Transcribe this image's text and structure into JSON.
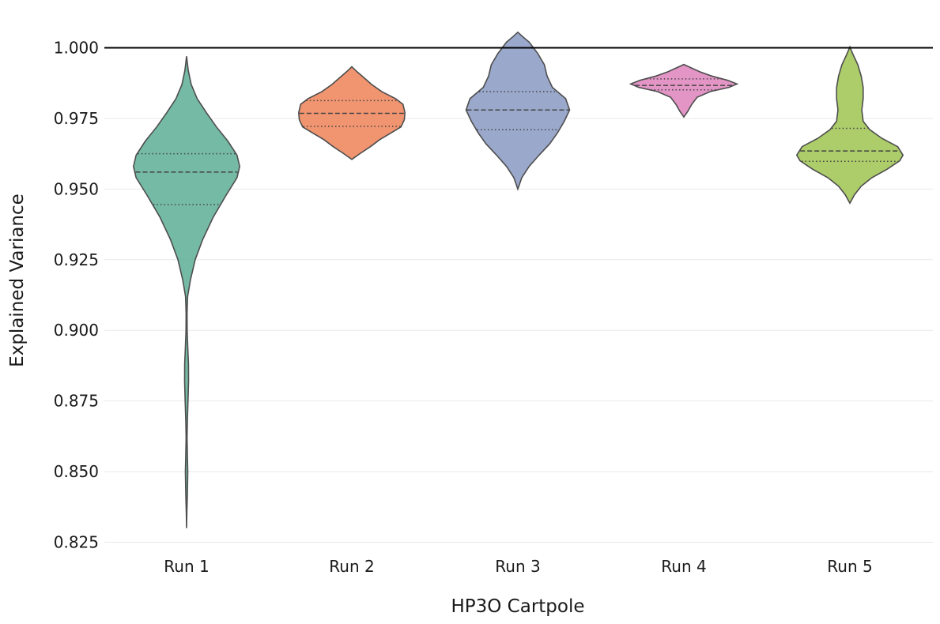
{
  "chart_data": {
    "type": "violin",
    "xlabel": "HP3O  Cartpole",
    "ylabel": "Explained Variance",
    "ylim": [
      0.82,
      1.007
    ],
    "yticks": [
      "0.825",
      "0.850",
      "0.875",
      "0.900",
      "0.925",
      "0.950",
      "0.975",
      "1.000"
    ],
    "reference_line": 1.0,
    "grid": "horizontal",
    "categories": [
      "Run 1",
      "Run 2",
      "Run 3",
      "Run 4",
      "Run 5"
    ],
    "series": [
      {
        "category": "Run 1",
        "color": "#66b39a",
        "min": 0.83,
        "max": 0.997,
        "q1": 0.9445,
        "median": 0.956,
        "q3": 0.9625,
        "profile": [
          [
            0.83,
            0.0
          ],
          [
            0.835,
            0.004
          ],
          [
            0.842,
            0.012
          ],
          [
            0.85,
            0.018
          ],
          [
            0.856,
            0.012
          ],
          [
            0.862,
            0.007
          ],
          [
            0.868,
            0.012
          ],
          [
            0.875,
            0.022
          ],
          [
            0.882,
            0.03
          ],
          [
            0.888,
            0.028
          ],
          [
            0.894,
            0.018
          ],
          [
            0.9,
            0.008
          ],
          [
            0.906,
            0.007
          ],
          [
            0.912,
            0.015
          ],
          [
            0.918,
            0.06
          ],
          [
            0.925,
            0.13
          ],
          [
            0.932,
            0.24
          ],
          [
            0.94,
            0.4
          ],
          [
            0.948,
            0.6
          ],
          [
            0.954,
            0.76
          ],
          [
            0.958,
            0.8
          ],
          [
            0.962,
            0.76
          ],
          [
            0.967,
            0.62
          ],
          [
            0.972,
            0.45
          ],
          [
            0.977,
            0.3
          ],
          [
            0.982,
            0.16
          ],
          [
            0.987,
            0.07
          ],
          [
            0.992,
            0.025
          ],
          [
            0.997,
            0.0
          ]
        ]
      },
      {
        "category": "Run 2",
        "color": "#f08a62",
        "min": 0.9605,
        "max": 0.9933,
        "q1": 0.9722,
        "median": 0.9768,
        "q3": 0.9813,
        "profile": [
          [
            0.9605,
            0.0
          ],
          [
            0.9625,
            0.12
          ],
          [
            0.965,
            0.28
          ],
          [
            0.9675,
            0.42
          ],
          [
            0.97,
            0.6
          ],
          [
            0.972,
            0.74
          ],
          [
            0.9745,
            0.79
          ],
          [
            0.977,
            0.8
          ],
          [
            0.98,
            0.77
          ],
          [
            0.982,
            0.66
          ],
          [
            0.9845,
            0.45
          ],
          [
            0.987,
            0.3
          ],
          [
            0.9895,
            0.18
          ],
          [
            0.9915,
            0.08
          ],
          [
            0.9933,
            0.0
          ]
        ]
      },
      {
        "category": "Run 3",
        "color": "#8f9fc5",
        "min": 0.95,
        "max": 1.0055,
        "q1": 0.971,
        "median": 0.978,
        "q3": 0.9845,
        "profile": [
          [
            0.95,
            0.0
          ],
          [
            0.954,
            0.06
          ],
          [
            0.958,
            0.17
          ],
          [
            0.962,
            0.32
          ],
          [
            0.966,
            0.48
          ],
          [
            0.97,
            0.6
          ],
          [
            0.974,
            0.7
          ],
          [
            0.978,
            0.78
          ],
          [
            0.982,
            0.72
          ],
          [
            0.986,
            0.52
          ],
          [
            0.99,
            0.44
          ],
          [
            0.994,
            0.4
          ],
          [
            0.998,
            0.3
          ],
          [
            1.002,
            0.17
          ],
          [
            1.004,
            0.07
          ],
          [
            1.0055,
            0.0
          ]
        ]
      },
      {
        "category": "Run 4",
        "color": "#e08ac0",
        "min": 0.9755,
        "max": 0.9941,
        "q1": 0.9851,
        "median": 0.9867,
        "q3": 0.989,
        "profile": [
          [
            0.9755,
            0.0
          ],
          [
            0.9775,
            0.06
          ],
          [
            0.98,
            0.12
          ],
          [
            0.9825,
            0.2
          ],
          [
            0.9845,
            0.4
          ],
          [
            0.986,
            0.68
          ],
          [
            0.9872,
            0.8
          ],
          [
            0.9885,
            0.66
          ],
          [
            0.99,
            0.42
          ],
          [
            0.9915,
            0.24
          ],
          [
            0.993,
            0.1
          ],
          [
            0.9941,
            0.0
          ]
        ]
      },
      {
        "category": "Run 5",
        "color": "#a3c85a",
        "min": 0.945,
        "max": 1.0003,
        "q1": 0.9598,
        "median": 0.9635,
        "q3": 0.9715,
        "profile": [
          [
            0.945,
            0.0
          ],
          [
            0.948,
            0.07
          ],
          [
            0.951,
            0.17
          ],
          [
            0.954,
            0.33
          ],
          [
            0.957,
            0.56
          ],
          [
            0.96,
            0.75
          ],
          [
            0.962,
            0.8
          ],
          [
            0.965,
            0.72
          ],
          [
            0.968,
            0.48
          ],
          [
            0.971,
            0.3
          ],
          [
            0.974,
            0.2
          ],
          [
            0.978,
            0.18
          ],
          [
            0.982,
            0.2
          ],
          [
            0.986,
            0.2
          ],
          [
            0.99,
            0.17
          ],
          [
            0.994,
            0.12
          ],
          [
            0.9975,
            0.05
          ],
          [
            1.0003,
            0.0
          ]
        ]
      }
    ]
  }
}
